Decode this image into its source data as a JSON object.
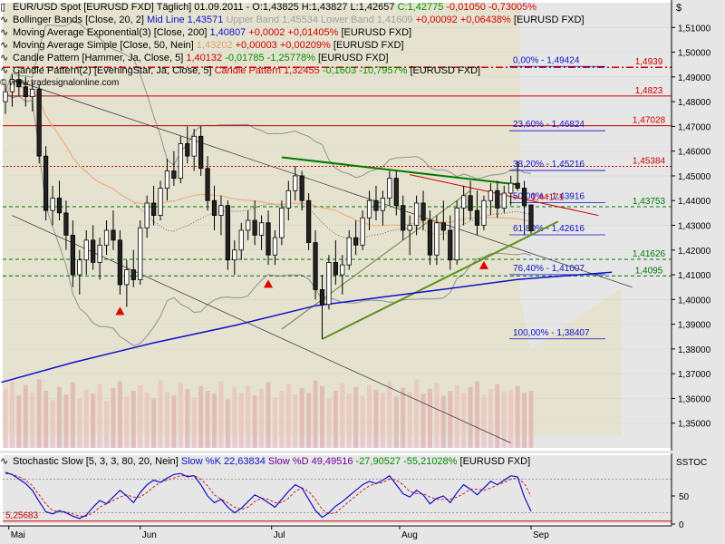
{
  "colors": {
    "panel_bg": "#ffffff",
    "plot_bg": "#e6e6e6",
    "band_fill": "#e4e0bc",
    "bull": "#ffffff",
    "bear": "#222222",
    "ema": "#1010c8",
    "sma": "#f0b080",
    "bb": "#909090",
    "red_line": "#d00000",
    "green_line": "#007800",
    "trend": "#404040"
  },
  "legend": {
    "line1": {
      "title": "EUR/USD Spot [EURUSD FXD]  Täglich] 01.09.2011 - O:1,43825 H:1,43827 L:1,42657 ",
      "close": "C:1,42775",
      "change": "-0,01050 -0,73005%"
    },
    "line2": {
      "name": "Bollinger Bands [Close, 20, 2] ",
      "mid": "Mid Line 1,43571",
      "bands": " Upper Band 1,45534 Lower Band 1,41609",
      "chg": " +0,00092 +0,06438%",
      "sym": " [EURUSD FXD]"
    },
    "line3": {
      "name": "Moving Average Exponential(3) [Close, 200] ",
      "val": "1,40807",
      "chg": " +0,0002 +0,01405%",
      "sym": " [EURUSD FXD]"
    },
    "line4": {
      "name": "Moving Average Simple [Close, 50, Nein] ",
      "val": "1,43202",
      "chg": " +0,00003 +0,00209%",
      "sym": " [EURUSD FXD]"
    },
    "line5": {
      "name": "Candle Pattern [Hammer, Ja, Close, 5] ",
      "val": "1,40132",
      "chg": " -0,01785 -1,25778%",
      "sym": " [EURUSD FXD]"
    },
    "line6": {
      "name": "Candle Pattern(2) [EveningStar, Ja, Close, 5] ",
      "val": "Candle Pattern 1,32455",
      "chg": " -0,1603 -10,7957%",
      "sym": " [EURUSD FXD]"
    },
    "watermark": "© www.tradesignalonline.com"
  },
  "stoch_legend": {
    "name": "Stochastic Slow [5, 3, 3, 80, 20, Nein] ",
    "k": "Slow %K 22,63834",
    "d": " Slow %D 49,49516",
    "chg": " -27,90527 -55,21028%",
    "sym": " [EURUSD FXD]"
  },
  "chart_data": {
    "type": "candlestick",
    "instrument": "EUR/USD Spot [EURUSD FXD]",
    "currency_label": "$",
    "ylim": [
      1.34,
      1.52
    ],
    "y_ticks": [
      "1,51000",
      "1,50000",
      "1,49000",
      "1,48000",
      "1,47000",
      "1,46000",
      "1,45000",
      "1,44000",
      "1,43000",
      "1,42000",
      "1,41000",
      "1,40000",
      "1,39000",
      "1,38000",
      "1,37000",
      "1,36000",
      "1,35000"
    ],
    "x_ticks": [
      "Mai",
      "Jun",
      "Jul",
      "Aug",
      "Sep"
    ],
    "horizontal_levels": [
      {
        "label": "1,4939",
        "value": 1.4939,
        "color": "#d00000",
        "style": "dashdot"
      },
      {
        "label": "1,4823",
        "value": 1.4823,
        "color": "#d00000",
        "style": "solid"
      },
      {
        "label": "1,47028",
        "value": 1.47028,
        "color": "#d00000",
        "style": "solid"
      },
      {
        "label": "1,45384",
        "value": 1.45384,
        "color": "#d00000",
        "style": "dotted"
      },
      {
        "label": "1,43753",
        "value": 1.43753,
        "color": "#007800",
        "style": "dashed"
      },
      {
        "label": "1,41626",
        "value": 1.41626,
        "color": "#007800",
        "style": "dashed"
      },
      {
        "label": "1,4095",
        "value": 1.4095,
        "color": "#007800",
        "style": "dashed"
      }
    ],
    "fibonacci": [
      {
        "label": "0,00% - 1,49424",
        "value": 1.49424
      },
      {
        "label": "23,60% - 1,46824",
        "value": 1.46824
      },
      {
        "label": "38,20% - 1,45216",
        "value": 1.45216
      },
      {
        "label": "50,00% - 1,43916",
        "value": 1.43916
      },
      {
        "label": "61,80% - 1,42616",
        "value": 1.42616
      },
      {
        "label": "76,40% - 1,41007",
        "value": 1.41007
      },
      {
        "label": "100,00% - 1,38407",
        "value": 1.38407
      }
    ],
    "marker_labels": [
      {
        "label": "1,44171",
        "value": 1.44171
      }
    ],
    "candles": [
      {
        "o": 1.48,
        "h": 1.487,
        "l": 1.475,
        "c": 1.484
      },
      {
        "o": 1.484,
        "h": 1.491,
        "l": 1.478,
        "c": 1.489
      },
      {
        "o": 1.489,
        "h": 1.493,
        "l": 1.482,
        "c": 1.486
      },
      {
        "o": 1.486,
        "h": 1.49,
        "l": 1.478,
        "c": 1.482
      },
      {
        "o": 1.482,
        "h": 1.488,
        "l": 1.476,
        "c": 1.485
      },
      {
        "o": 1.485,
        "h": 1.487,
        "l": 1.455,
        "c": 1.458
      },
      {
        "o": 1.458,
        "h": 1.462,
        "l": 1.432,
        "c": 1.436
      },
      {
        "o": 1.436,
        "h": 1.446,
        "l": 1.43,
        "c": 1.441
      },
      {
        "o": 1.441,
        "h": 1.448,
        "l": 1.432,
        "c": 1.435
      },
      {
        "o": 1.435,
        "h": 1.44,
        "l": 1.42,
        "c": 1.426
      },
      {
        "o": 1.426,
        "h": 1.432,
        "l": 1.405,
        "c": 1.41
      },
      {
        "o": 1.41,
        "h": 1.42,
        "l": 1.402,
        "c": 1.416
      },
      {
        "o": 1.416,
        "h": 1.428,
        "l": 1.41,
        "c": 1.424
      },
      {
        "o": 1.424,
        "h": 1.43,
        "l": 1.412,
        "c": 1.415
      },
      {
        "o": 1.415,
        "h": 1.425,
        "l": 1.408,
        "c": 1.422
      },
      {
        "o": 1.422,
        "h": 1.432,
        "l": 1.418,
        "c": 1.428
      },
      {
        "o": 1.428,
        "h": 1.436,
        "l": 1.42,
        "c": 1.424
      },
      {
        "o": 1.424,
        "h": 1.428,
        "l": 1.402,
        "c": 1.406
      },
      {
        "o": 1.406,
        "h": 1.416,
        "l": 1.397,
        "c": 1.412
      },
      {
        "o": 1.412,
        "h": 1.42,
        "l": 1.405,
        "c": 1.408
      },
      {
        "o": 1.408,
        "h": 1.432,
        "l": 1.406,
        "c": 1.429
      },
      {
        "o": 1.429,
        "h": 1.442,
        "l": 1.425,
        "c": 1.439
      },
      {
        "o": 1.439,
        "h": 1.446,
        "l": 1.43,
        "c": 1.434
      },
      {
        "o": 1.434,
        "h": 1.448,
        "l": 1.432,
        "c": 1.445
      },
      {
        "o": 1.445,
        "h": 1.457,
        "l": 1.44,
        "c": 1.452
      },
      {
        "o": 1.452,
        "h": 1.46,
        "l": 1.446,
        "c": 1.449
      },
      {
        "o": 1.449,
        "h": 1.466,
        "l": 1.447,
        "c": 1.463
      },
      {
        "o": 1.463,
        "h": 1.47,
        "l": 1.455,
        "c": 1.458
      },
      {
        "o": 1.458,
        "h": 1.469,
        "l": 1.452,
        "c": 1.466
      },
      {
        "o": 1.466,
        "h": 1.47,
        "l": 1.45,
        "c": 1.453
      },
      {
        "o": 1.453,
        "h": 1.458,
        "l": 1.436,
        "c": 1.44
      },
      {
        "o": 1.44,
        "h": 1.446,
        "l": 1.428,
        "c": 1.434
      },
      {
        "o": 1.434,
        "h": 1.442,
        "l": 1.426,
        "c": 1.438
      },
      {
        "o": 1.438,
        "h": 1.44,
        "l": 1.412,
        "c": 1.416
      },
      {
        "o": 1.416,
        "h": 1.424,
        "l": 1.41,
        "c": 1.42
      },
      {
        "o": 1.42,
        "h": 1.431,
        "l": 1.416,
        "c": 1.428
      },
      {
        "o": 1.428,
        "h": 1.436,
        "l": 1.424,
        "c": 1.432
      },
      {
        "o": 1.432,
        "h": 1.44,
        "l": 1.422,
        "c": 1.426
      },
      {
        "o": 1.426,
        "h": 1.434,
        "l": 1.42,
        "c": 1.431
      },
      {
        "o": 1.431,
        "h": 1.436,
        "l": 1.414,
        "c": 1.418
      },
      {
        "o": 1.418,
        "h": 1.428,
        "l": 1.414,
        "c": 1.425
      },
      {
        "o": 1.425,
        "h": 1.44,
        "l": 1.422,
        "c": 1.437
      },
      {
        "o": 1.437,
        "h": 1.448,
        "l": 1.432,
        "c": 1.444
      },
      {
        "o": 1.444,
        "h": 1.454,
        "l": 1.44,
        "c": 1.45
      },
      {
        "o": 1.45,
        "h": 1.452,
        "l": 1.436,
        "c": 1.44
      },
      {
        "o": 1.44,
        "h": 1.443,
        "l": 1.42,
        "c": 1.423
      },
      {
        "o": 1.423,
        "h": 1.428,
        "l": 1.4,
        "c": 1.404
      },
      {
        "o": 1.404,
        "h": 1.41,
        "l": 1.384,
        "c": 1.398
      },
      {
        "o": 1.398,
        "h": 1.418,
        "l": 1.396,
        "c": 1.415
      },
      {
        "o": 1.415,
        "h": 1.424,
        "l": 1.406,
        "c": 1.41
      },
      {
        "o": 1.41,
        "h": 1.418,
        "l": 1.402,
        "c": 1.414
      },
      {
        "o": 1.414,
        "h": 1.428,
        "l": 1.412,
        "c": 1.425
      },
      {
        "o": 1.425,
        "h": 1.432,
        "l": 1.418,
        "c": 1.422
      },
      {
        "o": 1.422,
        "h": 1.436,
        "l": 1.42,
        "c": 1.433
      },
      {
        "o": 1.433,
        "h": 1.444,
        "l": 1.428,
        "c": 1.44
      },
      {
        "o": 1.44,
        "h": 1.446,
        "l": 1.432,
        "c": 1.436
      },
      {
        "o": 1.436,
        "h": 1.444,
        "l": 1.43,
        "c": 1.441
      },
      {
        "o": 1.441,
        "h": 1.452,
        "l": 1.438,
        "c": 1.449
      },
      {
        "o": 1.449,
        "h": 1.452,
        "l": 1.434,
        "c": 1.438
      },
      {
        "o": 1.438,
        "h": 1.442,
        "l": 1.424,
        "c": 1.428
      },
      {
        "o": 1.428,
        "h": 1.434,
        "l": 1.418,
        "c": 1.43
      },
      {
        "o": 1.43,
        "h": 1.442,
        "l": 1.426,
        "c": 1.439
      },
      {
        "o": 1.439,
        "h": 1.444,
        "l": 1.428,
        "c": 1.432
      },
      {
        "o": 1.432,
        "h": 1.436,
        "l": 1.414,
        "c": 1.418
      },
      {
        "o": 1.418,
        "h": 1.434,
        "l": 1.414,
        "c": 1.431
      },
      {
        "o": 1.431,
        "h": 1.44,
        "l": 1.424,
        "c": 1.428
      },
      {
        "o": 1.428,
        "h": 1.434,
        "l": 1.412,
        "c": 1.416
      },
      {
        "o": 1.416,
        "h": 1.44,
        "l": 1.414,
        "c": 1.437
      },
      {
        "o": 1.437,
        "h": 1.446,
        "l": 1.43,
        "c": 1.442
      },
      {
        "o": 1.442,
        "h": 1.448,
        "l": 1.432,
        "c": 1.436
      },
      {
        "o": 1.436,
        "h": 1.444,
        "l": 1.426,
        "c": 1.43
      },
      {
        "o": 1.43,
        "h": 1.442,
        "l": 1.428,
        "c": 1.44
      },
      {
        "o": 1.44,
        "h": 1.447,
        "l": 1.434,
        "c": 1.444
      },
      {
        "o": 1.444,
        "h": 1.448,
        "l": 1.433,
        "c": 1.437
      },
      {
        "o": 1.437,
        "h": 1.446,
        "l": 1.435,
        "c": 1.443
      },
      {
        "o": 1.443,
        "h": 1.45,
        "l": 1.438,
        "c": 1.447
      },
      {
        "o": 1.447,
        "h": 1.456,
        "l": 1.444,
        "c": 1.445
      },
      {
        "o": 1.445,
        "h": 1.448,
        "l": 1.426,
        "c": 1.438
      },
      {
        "o": 1.43825,
        "h": 1.43827,
        "l": 1.42657,
        "c": 1.42775
      }
    ],
    "volume": [
      0.62,
      0.7,
      0.55,
      0.66,
      0.58,
      0.72,
      0.6,
      0.5,
      0.64,
      0.56,
      0.69,
      0.52,
      0.61,
      0.57,
      0.67,
      0.49,
      0.63,
      0.7,
      0.54,
      0.6,
      0.66,
      0.58,
      0.52,
      0.71,
      0.59,
      0.55,
      0.68,
      0.62,
      0.53,
      0.65,
      0.6,
      0.57,
      0.7,
      0.51,
      0.64,
      0.58,
      0.66,
      0.55,
      0.62,
      0.69,
      0.53,
      0.6,
      0.67,
      0.56,
      0.63,
      0.58,
      0.71,
      0.65,
      0.52,
      0.6,
      0.68,
      0.57,
      0.64,
      0.55,
      0.66,
      0.61,
      0.58,
      0.7,
      0.54,
      0.63,
      0.59,
      0.72,
      0.57,
      0.62,
      0.68,
      0.55,
      0.6,
      0.66,
      0.58,
      0.64,
      0.7,
      0.56,
      0.62,
      0.67,
      0.59,
      0.61,
      0.65,
      0.58,
      0.6
    ],
    "stoch_ticks": [
      "50",
      "0"
    ],
    "stoch_level_label": "5,25683",
    "stoch_axis_label": "SSTOC",
    "stoch_k": [
      92,
      88,
      80,
      72,
      60,
      40,
      22,
      18,
      24,
      20,
      14,
      10,
      16,
      30,
      42,
      36,
      48,
      60,
      50,
      38,
      56,
      70,
      78,
      74,
      82,
      88,
      90,
      84,
      86,
      70,
      50,
      38,
      44,
      30,
      20,
      28,
      40,
      52,
      46,
      38,
      30,
      44,
      58,
      70,
      64,
      44,
      24,
      12,
      20,
      32,
      40,
      50,
      60,
      70,
      76,
      72,
      78,
      86,
      70,
      54,
      48,
      60,
      52,
      36,
      46,
      50,
      38,
      56,
      70,
      62,
      52,
      64,
      76,
      70,
      78,
      86,
      84,
      48,
      22.6
    ],
    "stoch_d": [
      90,
      88,
      84,
      78,
      68,
      52,
      36,
      24,
      22,
      22,
      18,
      14,
      14,
      20,
      30,
      36,
      42,
      48,
      52,
      48,
      48,
      56,
      66,
      74,
      78,
      82,
      86,
      86,
      86,
      80,
      68,
      52,
      44,
      38,
      30,
      26,
      30,
      40,
      46,
      44,
      38,
      38,
      46,
      58,
      64,
      58,
      44,
      26,
      18,
      20,
      30,
      40,
      50,
      60,
      68,
      72,
      74,
      80,
      78,
      70,
      58,
      54,
      54,
      48,
      44,
      44,
      44,
      48,
      54,
      62,
      62,
      60,
      64,
      70,
      74,
      80,
      82,
      72,
      49.5
    ]
  }
}
